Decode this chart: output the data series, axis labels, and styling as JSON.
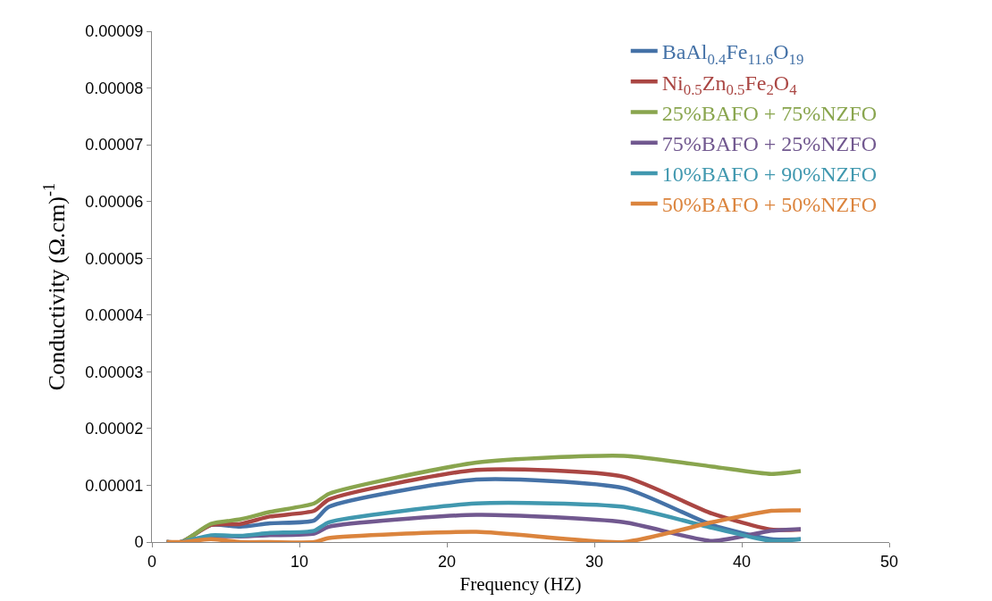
{
  "chart_data": {
    "type": "line",
    "xlabel": "Frequency (HZ)",
    "ylabel": "Conductivity (Ω.cm)$^{-1}$",
    "x": [
      1,
      2,
      4,
      6,
      8,
      11,
      12,
      22,
      32,
      38,
      42,
      44
    ],
    "series": [
      {
        "name": "BaAl$_{0.4}$Fe$_{11.6}$O$_{19}$",
        "color": "#4572a7",
        "values": [
          0,
          0,
          3e-06,
          2.7e-06,
          3.3e-06,
          3.8e-06,
          6.2e-06,
          1.1e-05,
          9.5e-06,
          3e-06,
          5e-07,
          5e-07
        ]
      },
      {
        "name": "Ni$_{0.5}$Zn$_{0.5}$Fe$_{2}$O$_{4}$",
        "color": "#aa4643",
        "values": [
          0,
          0,
          3e-06,
          3.2e-06,
          4.5e-06,
          5.5e-06,
          7.5e-06,
          1.27e-05,
          1.15e-05,
          5e-06,
          2.2e-06,
          2.2e-06
        ]
      },
      {
        "name": "25%BAFO + 75%NZFO",
        "color": "#89a54e",
        "values": [
          0,
          0,
          3.2e-06,
          4e-06,
          5.3e-06,
          6.8e-06,
          8.5e-06,
          1.4e-05,
          1.52e-05,
          1.33e-05,
          1.2e-05,
          1.25e-05
        ]
      },
      {
        "name": "75%BAFO + 25%NZFO",
        "color": "#71588f",
        "values": [
          0,
          0,
          1e-06,
          1e-06,
          1.2e-06,
          1.5e-06,
          2.7e-06,
          4.8e-06,
          3.5e-06,
          2e-07,
          2e-06,
          2.3e-06
        ]
      },
      {
        "name": "10%BAFO + 90%NZFO",
        "color": "#4198af",
        "values": [
          0,
          0,
          1.2e-06,
          1.1e-06,
          1.6e-06,
          2e-06,
          3.5e-06,
          6.8e-06,
          6.2e-06,
          2.5e-06,
          2e-07,
          5e-07
        ]
      },
      {
        "name": "50%BAFO + 50%NZFO",
        "color": "#db843d",
        "values": [
          0,
          0,
          5e-07,
          0,
          0,
          0,
          7e-07,
          1.8e-06,
          0,
          3.5e-06,
          5.5e-06,
          5.6e-06
        ]
      }
    ],
    "xlim": [
      0,
      50
    ],
    "xticks": [
      0,
      10,
      20,
      30,
      40,
      50
    ],
    "ylim": [
      0,
      9e-05
    ],
    "yticks": [
      0,
      {
        "value": 1e-05,
        "label": "0.00001"
      },
      {
        "value": 2e-05,
        "label": "0.00002"
      },
      {
        "value": 3e-05,
        "label": "0.00003"
      },
      {
        "value": 4e-05,
        "label": "0.00004"
      },
      {
        "value": 5e-05,
        "label": "0.00005"
      },
      {
        "value": 6e-05,
        "label": "0.00006"
      },
      {
        "value": 7e-05,
        "label": "0.00007"
      },
      {
        "value": 8e-05,
        "label": "0.00008"
      },
      {
        "value": 9e-05,
        "label": "0.00009"
      }
    ],
    "legend": "top right",
    "marker": "none",
    "line_style": "solid"
  }
}
